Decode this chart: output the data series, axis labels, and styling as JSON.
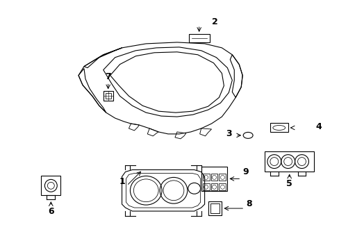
{
  "bg_color": "#ffffff",
  "line_color": "#000000",
  "label_color": "#000000",
  "figsize": [
    4.89,
    3.6
  ],
  "dpi": 100,
  "xlim": [
    0,
    489
  ],
  "ylim": [
    0,
    360
  ]
}
